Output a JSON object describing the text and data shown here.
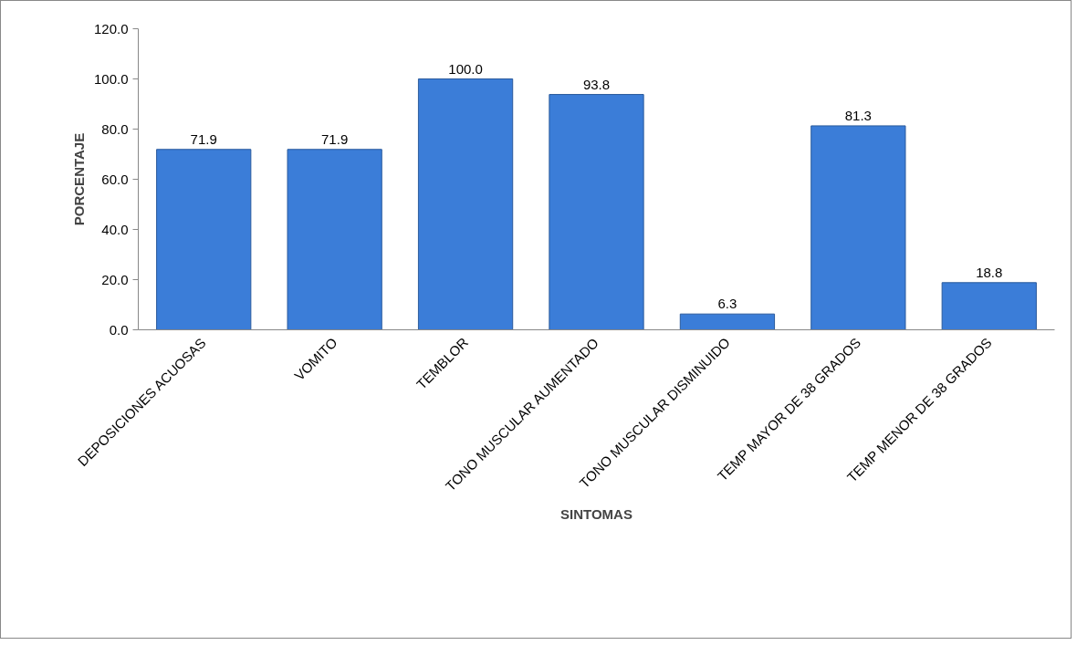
{
  "chart_data": {
    "type": "bar",
    "xlabel": "SINTOMAS",
    "ylabel": "PORCENTAJE",
    "categories": [
      "DEPOSICIONES ACUOSAS",
      "VOMITO",
      "TEMBLOR",
      "TONO MUSCULAR AUMENTADO",
      "TONO MUSCULAR DISMINUIDO",
      "TEMP MAYOR DE 38 GRADOS",
      "TEMP MENOR DE 38 GRADOS"
    ],
    "values": [
      71.9,
      71.9,
      100.0,
      93.8,
      6.3,
      81.3,
      18.8
    ],
    "value_labels": [
      "71.9",
      "71.9",
      "100.0",
      "93.8",
      "6.3",
      "81.3",
      "18.8"
    ],
    "color": "#3b7dd8",
    "ylim": [
      0,
      120
    ],
    "yticks": [
      {
        "value": 0,
        "label": "0.0"
      },
      {
        "value": 20,
        "label": "20.0"
      },
      {
        "value": 40,
        "label": "40.0"
      },
      {
        "value": 60,
        "label": "60.0"
      },
      {
        "value": 80,
        "label": "80.0"
      },
      {
        "value": 100,
        "label": "100.0"
      },
      {
        "value": 120,
        "label": "120.0"
      }
    ],
    "grid": false
  }
}
